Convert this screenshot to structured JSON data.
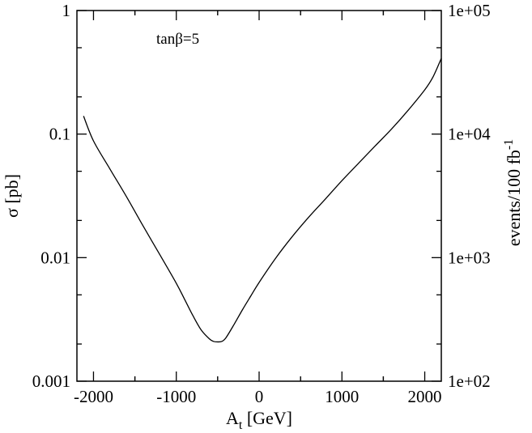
{
  "chart_data": {
    "type": "line",
    "annotation": "tanβ=5",
    "xlabel_main": "A",
    "xlabel_sub": "t",
    "xlabel_rest": " [GeV]",
    "ylabel": "σ [pb]",
    "y2label_main": "events/100 fb",
    "y2label_sup": "-1",
    "xlim": [
      -2200,
      2200
    ],
    "ylim": [
      0.001,
      1
    ],
    "yscale": "log",
    "y2lim": [
      100,
      100000
    ],
    "x_ticks": [
      -2000,
      -1000,
      0,
      1000,
      2000
    ],
    "x_tick_labels": [
      "-2000",
      "-1000",
      "0",
      "1000",
      "2000"
    ],
    "y_ticks": [
      0.001,
      0.01,
      0.1,
      1
    ],
    "y_tick_labels": [
      "0.001",
      "0.01",
      "0.1",
      "1"
    ],
    "y2_ticks": [
      100,
      1000,
      10000,
      100000
    ],
    "y2_tick_labels": [
      "1e+02",
      "1e+03",
      "1e+04",
      "1e+05"
    ],
    "grid": false,
    "series": [
      {
        "x": [
          -2120,
          -2000,
          -1800,
          -1600,
          -1400,
          -1200,
          -1000,
          -900,
          -800,
          -700,
          -600,
          -550,
          -500,
          -450,
          -400,
          -300,
          -200,
          -100,
          0,
          200,
          400,
          600,
          800,
          1000,
          1200,
          1400,
          1600,
          1800,
          2000,
          2100,
          2200
        ],
        "y": [
          0.14,
          0.088,
          0.052,
          0.031,
          0.018,
          0.0106,
          0.0062,
          0.0046,
          0.0034,
          0.0026,
          0.0022,
          0.0021,
          0.00208,
          0.0021,
          0.00225,
          0.0029,
          0.0038,
          0.0049,
          0.0063,
          0.0099,
          0.0148,
          0.0213,
          0.0298,
          0.042,
          0.058,
          0.08,
          0.11,
          0.156,
          0.228,
          0.29,
          0.41
        ]
      }
    ]
  }
}
